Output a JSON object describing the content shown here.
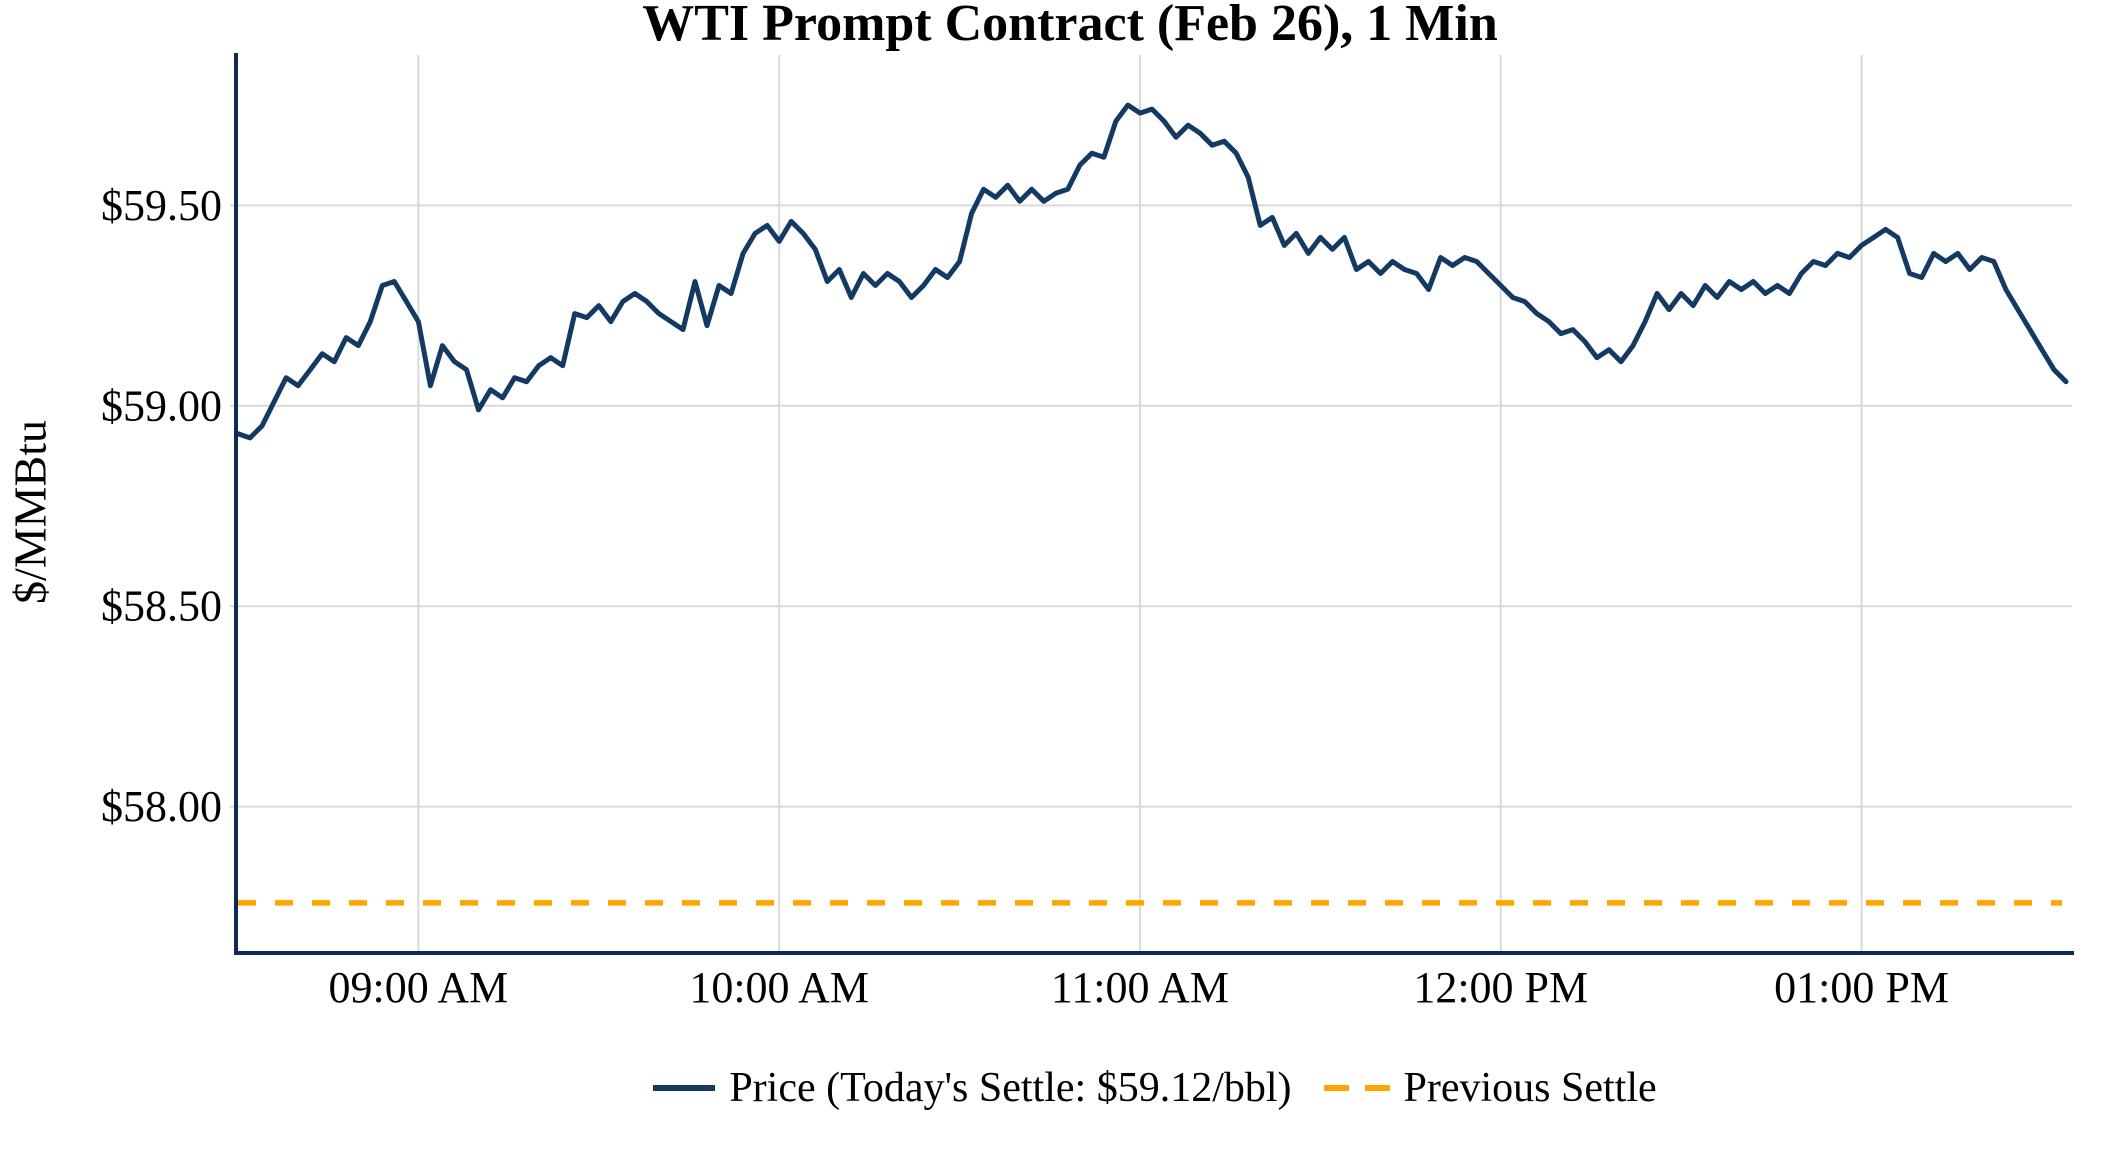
{
  "title": "WTI Prompt Contract (Feb 26), 1 Min",
  "y_axis": {
    "label": "$/MMBtu",
    "min": 57.64,
    "max": 59.875,
    "ticks": [
      {
        "value": 59.5,
        "label": "$59.50"
      },
      {
        "value": 59.0,
        "label": "$59.00"
      },
      {
        "value": 58.5,
        "label": "$58.50"
      },
      {
        "value": 58.0,
        "label": "$58.00"
      }
    ]
  },
  "x_axis": {
    "min_minutes": 510,
    "max_minutes": 815,
    "ticks": [
      {
        "minutes": 540,
        "label": "09:00 AM"
      },
      {
        "minutes": 600,
        "label": "10:00 AM"
      },
      {
        "minutes": 660,
        "label": "11:00 AM"
      },
      {
        "minutes": 720,
        "label": "12:00 PM"
      },
      {
        "minutes": 780,
        "label": "01:00 PM"
      }
    ]
  },
  "legend": {
    "price_label": "Price (Today's Settle: $59.12/bbl)",
    "previous_settle_label": "Previous Settle"
  },
  "colors": {
    "price_line": "#143a64",
    "previous_settle": "#ffa500",
    "grid": "#d9d9d9",
    "spine": "#0d2b52",
    "text": "#000000"
  },
  "chart_data": {
    "type": "line",
    "title": "WTI Prompt Contract (Feb 26), 1 Min",
    "xlabel": "",
    "ylabel": "$/MMBtu",
    "ylim": [
      57.64,
      59.875
    ],
    "xlim_minutes": [
      510,
      815
    ],
    "grid": true,
    "legend_position": "bottom",
    "x_start_minutes": 510,
    "x_step_minutes": 2,
    "series": [
      {
        "name": "Price (Today's Settle: $59.12/bbl)",
        "style": "solid",
        "color": "#143a64",
        "todays_settle": 59.12,
        "values": [
          58.93,
          58.92,
          58.95,
          59.01,
          59.07,
          59.05,
          59.09,
          59.13,
          59.11,
          59.17,
          59.15,
          59.21,
          59.3,
          59.31,
          59.26,
          59.21,
          59.05,
          59.15,
          59.11,
          59.09,
          58.99,
          59.04,
          59.02,
          59.07,
          59.06,
          59.1,
          59.12,
          59.1,
          59.23,
          59.22,
          59.25,
          59.21,
          59.26,
          59.28,
          59.26,
          59.23,
          59.21,
          59.19,
          59.31,
          59.2,
          59.3,
          59.28,
          59.38,
          59.43,
          59.45,
          59.41,
          59.46,
          59.43,
          59.39,
          59.31,
          59.34,
          59.27,
          59.33,
          59.3,
          59.33,
          59.31,
          59.27,
          59.3,
          59.34,
          59.32,
          59.36,
          59.48,
          59.54,
          59.52,
          59.55,
          59.51,
          59.54,
          59.51,
          59.53,
          59.54,
          59.6,
          59.63,
          59.62,
          59.71,
          59.75,
          59.73,
          59.74,
          59.71,
          59.67,
          59.7,
          59.68,
          59.65,
          59.66,
          59.63,
          59.57,
          59.45,
          59.47,
          59.4,
          59.43,
          59.38,
          59.42,
          59.39,
          59.42,
          59.34,
          59.36,
          59.33,
          59.36,
          59.34,
          59.33,
          59.29,
          59.37,
          59.35,
          59.37,
          59.36,
          59.33,
          59.3,
          59.27,
          59.26,
          59.23,
          59.21,
          59.18,
          59.19,
          59.16,
          59.12,
          59.14,
          59.11,
          59.15,
          59.21,
          59.28,
          59.24,
          59.28,
          59.25,
          59.3,
          59.27,
          59.31,
          59.29,
          59.31,
          59.28,
          59.3,
          59.28,
          59.33,
          59.36,
          59.35,
          59.38,
          59.37,
          59.4,
          59.42,
          59.44,
          59.42,
          59.33,
          59.32,
          59.38,
          59.36,
          59.38,
          59.34,
          59.37,
          59.36,
          59.29,
          59.24,
          59.19,
          59.14,
          59.09,
          59.06
        ]
      },
      {
        "name": "Previous Settle",
        "style": "dashed",
        "color": "#ffa500",
        "constant_value": 57.76
      }
    ]
  }
}
